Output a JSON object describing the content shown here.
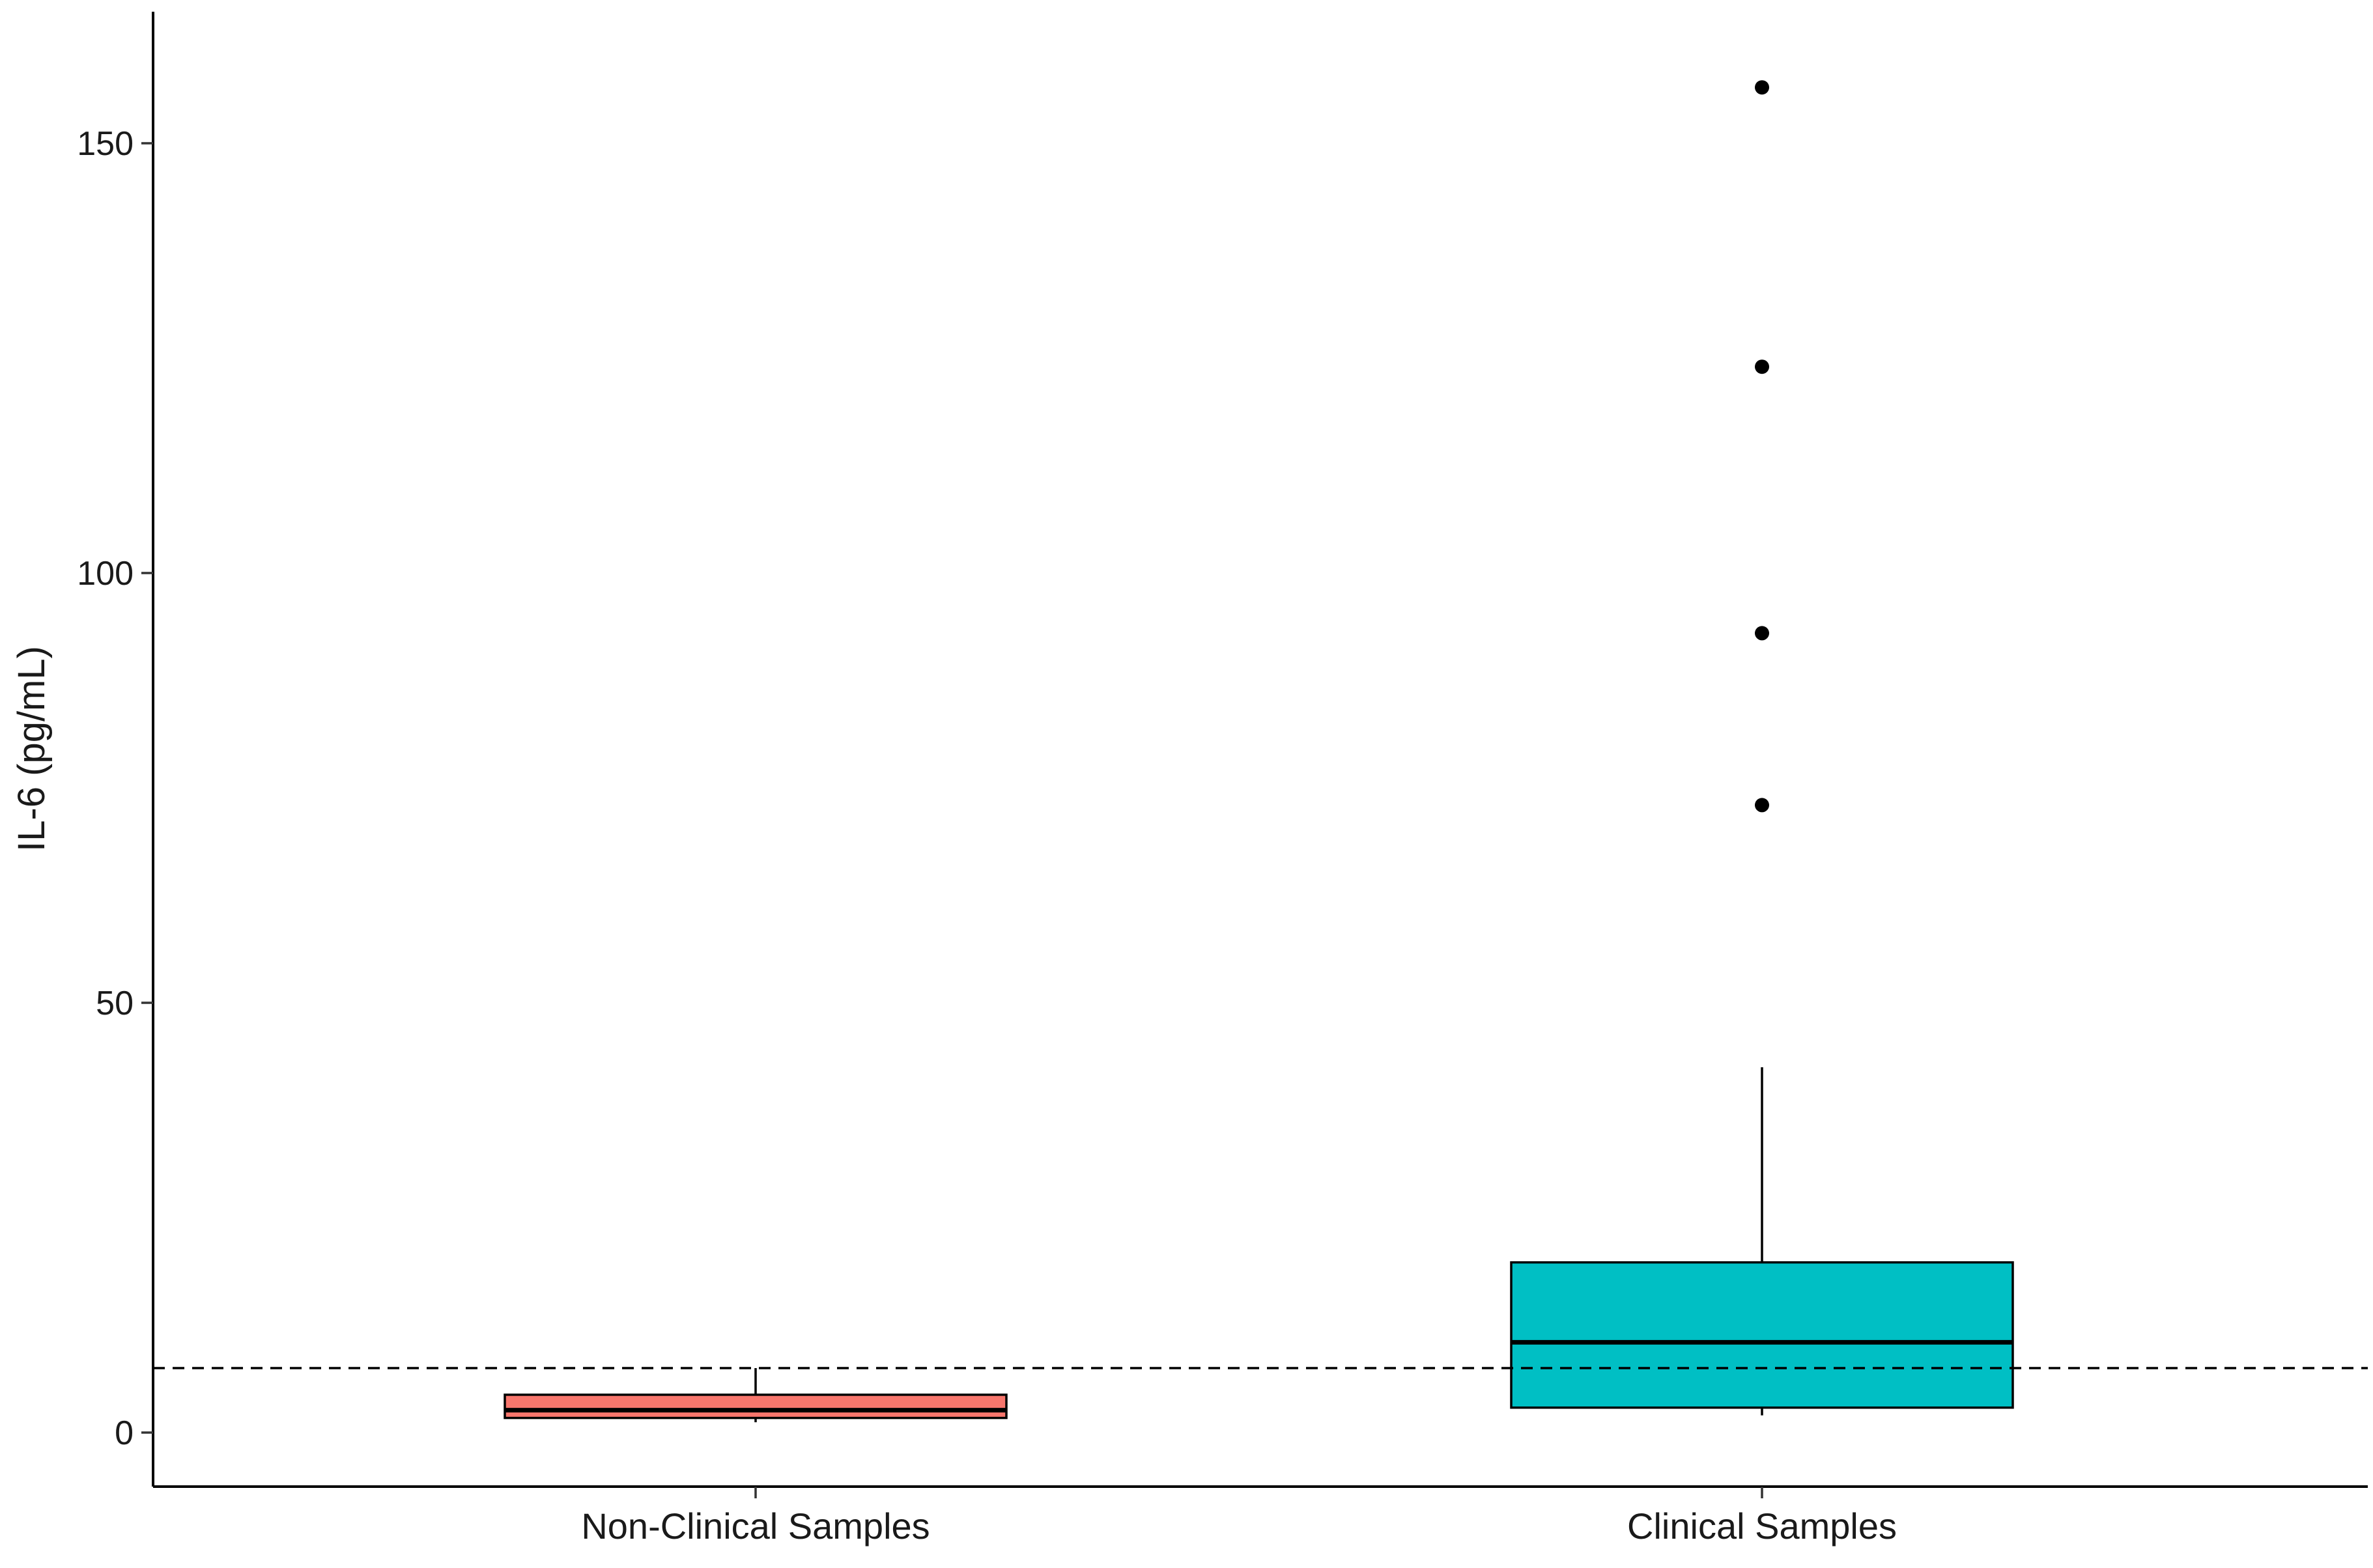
{
  "chart_data": {
    "type": "boxplot",
    "title": "",
    "xlabel": "",
    "ylabel": "IL-6 (pg/mL)",
    "ylim": [
      -6.5,
      165
    ],
    "y_ticks": [
      0,
      50,
      100,
      150
    ],
    "y_tick_labels": [
      "0",
      "50",
      "100",
      "150"
    ],
    "grid": false,
    "legend": "none",
    "reference_line": {
      "y": 7.5,
      "style": "dashed",
      "color": "#000000"
    },
    "categories": [
      "Non-Clinical Samples",
      "Clinical Samples"
    ],
    "boxes": [
      {
        "category": "Non-Clinical Samples",
        "color": "#F8766D",
        "whisker_low": 1.2,
        "q1": 1.7,
        "median": 2.6,
        "q3": 4.4,
        "whisker_high": 7.5,
        "outliers": []
      },
      {
        "category": "Clinical Samples",
        "color": "#00BFC4",
        "whisker_low": 2.0,
        "q1": 2.9,
        "median": 10.5,
        "q3": 19.8,
        "whisker_high": 42.5,
        "outliers": [
          73,
          93,
          124,
          156.5
        ]
      }
    ]
  }
}
